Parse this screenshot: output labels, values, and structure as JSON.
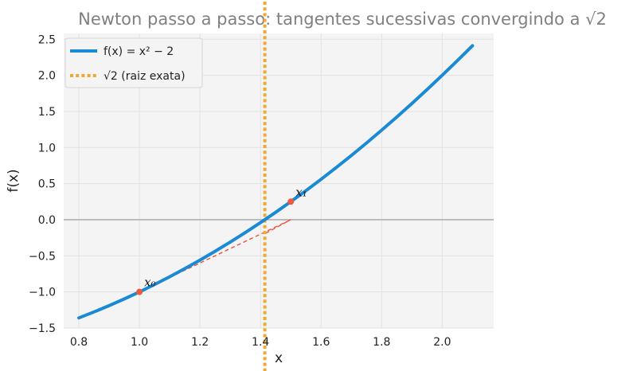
{
  "chart_data": {
    "type": "line",
    "title": "Newton passo a passo: tangentes sucessivas convergindo a √2",
    "xlabel": "x",
    "ylabel": "f(x)",
    "xlim": [
      0.75,
      2.17
    ],
    "ylim": [
      -1.5,
      2.58
    ],
    "x_ticks": [
      0.8,
      1.0,
      1.2,
      1.4,
      1.6,
      1.8,
      2.0
    ],
    "x_tick_labels": [
      "0.8",
      "1.0",
      "1.2",
      "1.4",
      "1.6",
      "1.8",
      "2.0"
    ],
    "y_ticks": [
      -1.5,
      -1.0,
      -0.5,
      0.0,
      0.5,
      1.0,
      1.5,
      2.0,
      2.5
    ],
    "y_tick_labels": [
      "−1.5",
      "−1.0",
      "−0.5",
      "0.0",
      "0.5",
      "1.0",
      "1.5",
      "2.0",
      "2.5"
    ],
    "grid": true,
    "legend_position": "top-left",
    "colors": {
      "curve": "#1a8ad4",
      "root_line": "#f0a830",
      "tangent": "#e8553a",
      "point": "#f05a3c",
      "axis_zero": "#b0b0b0",
      "plot_bg": "#f4f4f4",
      "grid": "#e2e2e2",
      "title": "#808080"
    },
    "series": [
      {
        "name": "f(x) = x² − 2",
        "kind": "function",
        "x": [
          0.8,
          0.85,
          0.9,
          0.95,
          1.0,
          1.05,
          1.1,
          1.15,
          1.2,
          1.25,
          1.3,
          1.35,
          1.4,
          1.45,
          1.5,
          1.55,
          1.6,
          1.65,
          1.7,
          1.75,
          1.8,
          1.85,
          1.9,
          1.95,
          2.0,
          2.05,
          2.1
        ],
        "y": [
          -1.36,
          -1.2775,
          -1.19,
          -1.0975,
          -1.0,
          -0.8975,
          -0.79,
          -0.6775,
          -0.56,
          -0.4375,
          -0.31,
          -0.1775,
          -0.04,
          0.1025,
          0.25,
          0.4025,
          0.56,
          0.7225,
          0.89,
          1.0625,
          1.24,
          1.4225,
          1.61,
          1.8025,
          2.0,
          2.2025,
          2.41
        ]
      },
      {
        "name": "√2 (raiz exata)",
        "kind": "vertical-line",
        "x": 1.41421
      }
    ],
    "tangent_lines": [
      {
        "from": [
          1.0,
          -1.0
        ],
        "to": [
          1.5,
          0.0
        ]
      },
      {
        "from": [
          1.41667,
          -0.1875
        ],
        "to": [
          1.5,
          0.0
        ]
      }
    ],
    "points": [
      {
        "label": "x₀",
        "x": 1.0,
        "y": -1.0
      },
      {
        "label": "x₁",
        "x": 1.5,
        "y": 0.25
      }
    ],
    "legend": [
      {
        "label": "f(x) = x² − 2"
      },
      {
        "label": "√2  (raiz exata)"
      }
    ]
  }
}
